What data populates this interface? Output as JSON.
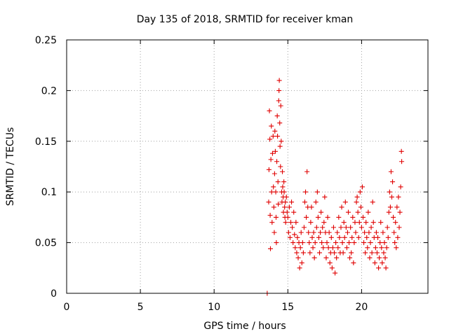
{
  "chart_data": {
    "type": "scatter",
    "title": "Day 135 of 2018, SRMTID for receiver kman",
    "xlabel": "GPS time / hours",
    "ylabel": "SRMTID / TECUs",
    "xlim": [
      0,
      24.5
    ],
    "ylim": [
      0,
      0.25
    ],
    "x_ticks": [
      0,
      5,
      10,
      15,
      20
    ],
    "x_tick_labels": [
      "0",
      "5",
      "10",
      "15",
      "20"
    ],
    "y_ticks": [
      0,
      0.05,
      0.1,
      0.15,
      0.2,
      0.25
    ],
    "y_tick_labels": [
      "0",
      "0.05",
      "0.1",
      "0.15",
      "0.2",
      "0.25"
    ],
    "grid": true,
    "marker": "+",
    "color": "#e00000",
    "series": [
      {
        "name": "SRMTID",
        "points": [
          [
            13.6,
            0.0
          ],
          [
            13.7,
            0.09
          ],
          [
            13.72,
            0.122
          ],
          [
            13.75,
            0.18
          ],
          [
            13.78,
            0.152
          ],
          [
            13.8,
            0.077
          ],
          [
            13.82,
            0.044
          ],
          [
            13.85,
            0.132
          ],
          [
            13.88,
            0.165
          ],
          [
            13.9,
            0.1
          ],
          [
            13.93,
            0.07
          ],
          [
            13.96,
            0.138
          ],
          [
            14.0,
            0.155
          ],
          [
            14.02,
            0.105
          ],
          [
            14.05,
            0.085
          ],
          [
            14.08,
            0.06
          ],
          [
            14.1,
            0.118
          ],
          [
            14.12,
            0.16
          ],
          [
            14.15,
            0.14
          ],
          [
            14.18,
            0.1
          ],
          [
            14.2,
            0.075
          ],
          [
            14.22,
            0.05
          ],
          [
            14.25,
            0.13
          ],
          [
            14.28,
            0.175
          ],
          [
            14.3,
            0.155
          ],
          [
            14.33,
            0.11
          ],
          [
            14.35,
            0.088
          ],
          [
            14.38,
            0.19
          ],
          [
            14.4,
            0.2
          ],
          [
            14.42,
            0.21
          ],
          [
            14.45,
            0.168
          ],
          [
            14.47,
            0.145
          ],
          [
            14.5,
            0.125
          ],
          [
            14.52,
            0.185
          ],
          [
            14.55,
            0.15
          ],
          [
            14.58,
            0.1
          ],
          [
            14.6,
            0.09
          ],
          [
            14.63,
            0.12
          ],
          [
            14.65,
            0.105
          ],
          [
            14.68,
            0.095
          ],
          [
            14.7,
            0.08
          ],
          [
            14.73,
            0.11
          ],
          [
            14.75,
            0.1
          ],
          [
            14.78,
            0.085
          ],
          [
            14.8,
            0.075
          ],
          [
            14.83,
            0.09
          ],
          [
            14.85,
            0.07
          ],
          [
            14.9,
            0.095
          ],
          [
            14.95,
            0.08
          ],
          [
            15.0,
            0.075
          ],
          [
            15.05,
            0.06
          ],
          [
            15.1,
            0.085
          ],
          [
            15.15,
            0.055
          ],
          [
            15.2,
            0.07
          ],
          [
            15.25,
            0.09
          ],
          [
            15.3,
            0.065
          ],
          [
            15.35,
            0.05
          ],
          [
            15.4,
            0.08
          ],
          [
            15.45,
            0.058
          ],
          [
            15.5,
            0.045
          ],
          [
            15.55,
            0.07
          ],
          [
            15.6,
            0.04
          ],
          [
            15.65,
            0.055
          ],
          [
            15.7,
            0.035
          ],
          [
            15.75,
            0.05
          ],
          [
            15.8,
            0.025
          ],
          [
            15.85,
            0.045
          ],
          [
            15.9,
            0.06
          ],
          [
            15.95,
            0.03
          ],
          [
            16.0,
            0.05
          ],
          [
            16.05,
            0.04
          ],
          [
            16.1,
            0.065
          ],
          [
            16.15,
            0.09
          ],
          [
            16.2,
            0.1
          ],
          [
            16.25,
            0.075
          ],
          [
            16.3,
            0.12
          ],
          [
            16.35,
            0.085
          ],
          [
            16.4,
            0.06
          ],
          [
            16.45,
            0.05
          ],
          [
            16.5,
            0.04
          ],
          [
            16.55,
            0.07
          ],
          [
            16.6,
            0.085
          ],
          [
            16.65,
            0.055
          ],
          [
            16.7,
            0.045
          ],
          [
            16.75,
            0.06
          ],
          [
            16.8,
            0.035
          ],
          [
            16.85,
            0.05
          ],
          [
            16.9,
            0.09
          ],
          [
            16.95,
            0.065
          ],
          [
            17.0,
            0.1
          ],
          [
            17.05,
            0.075
          ],
          [
            17.1,
            0.055
          ],
          [
            17.15,
            0.04
          ],
          [
            17.2,
            0.06
          ],
          [
            17.25,
            0.08
          ],
          [
            17.3,
            0.05
          ],
          [
            17.35,
            0.065
          ],
          [
            17.4,
            0.045
          ],
          [
            17.45,
            0.07
          ],
          [
            17.5,
            0.095
          ],
          [
            17.55,
            0.06
          ],
          [
            17.6,
            0.035
          ],
          [
            17.65,
            0.05
          ],
          [
            17.7,
            0.075
          ],
          [
            17.75,
            0.045
          ],
          [
            17.8,
            0.06
          ],
          [
            17.85,
            0.03
          ],
          [
            17.9,
            0.04
          ],
          [
            17.95,
            0.055
          ],
          [
            18.0,
            0.025
          ],
          [
            18.05,
            0.045
          ],
          [
            18.1,
            0.065
          ],
          [
            18.15,
            0.04
          ],
          [
            18.2,
            0.02
          ],
          [
            18.25,
            0.05
          ],
          [
            18.3,
            0.035
          ],
          [
            18.35,
            0.06
          ],
          [
            18.4,
            0.045
          ],
          [
            18.45,
            0.075
          ],
          [
            18.5,
            0.055
          ],
          [
            18.55,
            0.04
          ],
          [
            18.6,
            0.065
          ],
          [
            18.65,
            0.085
          ],
          [
            18.7,
            0.05
          ],
          [
            18.75,
            0.04
          ],
          [
            18.8,
            0.07
          ],
          [
            18.85,
            0.055
          ],
          [
            18.9,
            0.09
          ],
          [
            18.95,
            0.065
          ],
          [
            19.0,
            0.045
          ],
          [
            19.05,
            0.06
          ],
          [
            19.1,
            0.08
          ],
          [
            19.15,
            0.05
          ],
          [
            19.2,
            0.035
          ],
          [
            19.25,
            0.065
          ],
          [
            19.3,
            0.04
          ],
          [
            19.35,
            0.055
          ],
          [
            19.4,
            0.075
          ],
          [
            19.45,
            0.03
          ],
          [
            19.5,
            0.05
          ],
          [
            19.55,
            0.07
          ],
          [
            19.6,
            0.06
          ],
          [
            19.65,
            0.09
          ],
          [
            19.7,
            0.095
          ],
          [
            19.75,
            0.08
          ],
          [
            19.8,
            0.055
          ],
          [
            19.85,
            0.07
          ],
          [
            19.9,
            0.1
          ],
          [
            19.95,
            0.085
          ],
          [
            20.0,
            0.065
          ],
          [
            20.05,
            0.105
          ],
          [
            20.1,
            0.075
          ],
          [
            20.15,
            0.05
          ],
          [
            20.2,
            0.06
          ],
          [
            20.25,
            0.04
          ],
          [
            20.3,
            0.07
          ],
          [
            20.35,
            0.055
          ],
          [
            20.4,
            0.045
          ],
          [
            20.45,
            0.08
          ],
          [
            20.5,
            0.06
          ],
          [
            20.55,
            0.035
          ],
          [
            20.6,
            0.05
          ],
          [
            20.65,
            0.065
          ],
          [
            20.7,
            0.04
          ],
          [
            20.75,
            0.09
          ],
          [
            20.8,
            0.07
          ],
          [
            20.85,
            0.055
          ],
          [
            20.9,
            0.03
          ],
          [
            20.95,
            0.045
          ],
          [
            21.0,
            0.06
          ],
          [
            21.05,
            0.04
          ],
          [
            21.1,
            0.055
          ],
          [
            21.15,
            0.025
          ],
          [
            21.2,
            0.035
          ],
          [
            21.25,
            0.05
          ],
          [
            21.3,
            0.07
          ],
          [
            21.35,
            0.045
          ],
          [
            21.4,
            0.03
          ],
          [
            21.45,
            0.06
          ],
          [
            21.5,
            0.04
          ],
          [
            21.55,
            0.05
          ],
          [
            21.6,
            0.035
          ],
          [
            21.65,
            0.025
          ],
          [
            21.7,
            0.045
          ],
          [
            21.75,
            0.065
          ],
          [
            21.8,
            0.055
          ],
          [
            21.85,
            0.08
          ],
          [
            21.9,
            0.1
          ],
          [
            21.95,
            0.085
          ],
          [
            22.0,
            0.12
          ],
          [
            22.05,
            0.095
          ],
          [
            22.1,
            0.11
          ],
          [
            22.15,
            0.075
          ],
          [
            22.2,
            0.06
          ],
          [
            22.25,
            0.05
          ],
          [
            22.3,
            0.07
          ],
          [
            22.35,
            0.045
          ],
          [
            22.4,
            0.085
          ],
          [
            22.45,
            0.055
          ],
          [
            22.5,
            0.095
          ],
          [
            22.55,
            0.065
          ],
          [
            22.6,
            0.08
          ],
          [
            22.65,
            0.105
          ],
          [
            22.7,
            0.14
          ],
          [
            22.72,
            0.13
          ]
        ]
      }
    ]
  }
}
